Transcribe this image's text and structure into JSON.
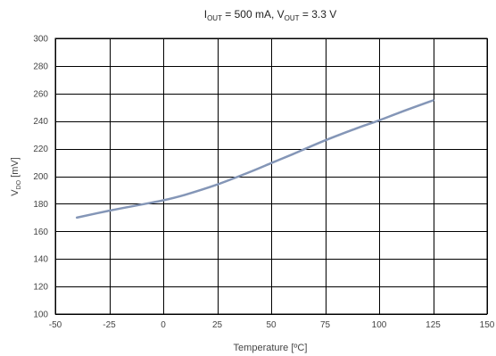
{
  "chart_data": {
    "type": "line",
    "title_parts": {
      "i_sym": "I",
      "i_sub": "OUT",
      "i_val": " = 500 mA, ",
      "v_sym": "V",
      "v_sub": "OUT",
      "v_val": " = 3.3 V"
    },
    "xlabel": "Temperature [ºC]",
    "ylabel_parts": {
      "sym": "V",
      "sub": "DO",
      "unit": " [mV]"
    },
    "xlim": [
      -50,
      150
    ],
    "ylim": [
      100,
      300
    ],
    "x_ticks": [
      -50,
      -25,
      0,
      25,
      50,
      75,
      100,
      125,
      150
    ],
    "y_ticks": [
      100,
      120,
      140,
      160,
      180,
      200,
      220,
      240,
      260,
      280,
      300
    ],
    "grid": true,
    "series": [
      {
        "color": "#8496b7",
        "x": [
          -40,
          -25,
          -10,
          0,
          10,
          25,
          40,
          50,
          60,
          75,
          90,
          100,
          110,
          125
        ],
        "y": [
          170,
          175,
          179.5,
          182.5,
          186.5,
          194,
          203,
          209.5,
          216,
          226,
          235,
          240.5,
          246.5,
          255
        ]
      }
    ]
  }
}
